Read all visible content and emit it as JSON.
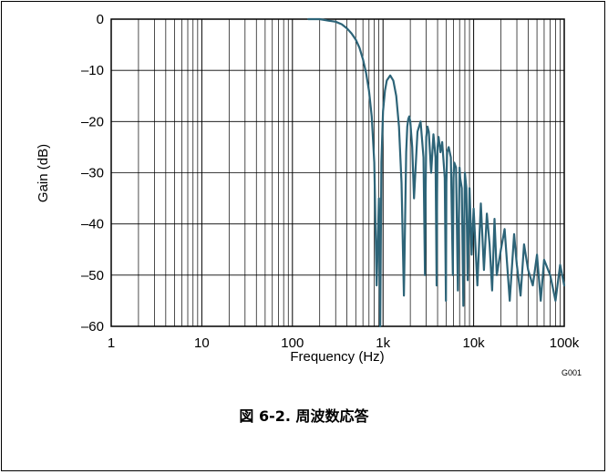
{
  "figure": {
    "code": "G001",
    "caption": "図 6-2. 周波数応答"
  },
  "chart_data": {
    "type": "line",
    "title": "",
    "xlabel": "Frequency (Hz)",
    "ylabel": "Gain (dB)",
    "xscale": "log",
    "xlim": [
      1,
      100000
    ],
    "ylim": [
      -60,
      0
    ],
    "xticks": [
      "1",
      "10",
      "100",
      "1k",
      "10k",
      "100k"
    ],
    "yticks": [
      "0",
      "–10",
      "–20",
      "–30",
      "–40",
      "–50",
      "–60"
    ],
    "grid": true,
    "line_color": "#2d6478",
    "series": [
      {
        "x": [
          150,
          200,
          250,
          300,
          350,
          400,
          450,
          500,
          550,
          600,
          650,
          700,
          750,
          800,
          850,
          900,
          930,
          960,
          1000,
          1050,
          1100,
          1200,
          1300,
          1400,
          1500,
          1600,
          1700,
          1800,
          1850,
          1900,
          1950,
          2000,
          2100,
          2200,
          2400,
          2600,
          2800,
          2900,
          2950,
          3000,
          3100,
          3200,
          3400,
          3600,
          3800,
          3900,
          3950,
          4000,
          4100,
          4300,
          4500,
          4800,
          4950,
          5000,
          5100,
          5300,
          5600,
          5900,
          6000,
          6100,
          6400,
          6700,
          7000,
          7100,
          7400,
          7700,
          8000,
          8300,
          8600,
          9000,
          9500,
          10000,
          11000,
          12000,
          13000,
          14000,
          15000,
          16000,
          17000,
          18000,
          20000,
          22000,
          25000,
          28000,
          30000,
          33000,
          36000,
          40000,
          45000,
          50000,
          55000,
          60000,
          70000,
          80000,
          90000,
          100000
        ],
        "y": [
          0,
          0,
          -0.3,
          -0.5,
          -1,
          -1.8,
          -2.8,
          -4,
          -5.6,
          -7.8,
          -10.5,
          -14,
          -19,
          -28,
          -52,
          -35,
          -60,
          -28,
          -18,
          -14,
          -12,
          -11,
          -12,
          -15,
          -21,
          -32,
          -54,
          -26,
          -21,
          -19.5,
          -19,
          -20,
          -25,
          -35,
          -22,
          -20,
          -27,
          -50,
          -34,
          -23,
          -21,
          -22,
          -30,
          -22.5,
          -27,
          -52,
          -34,
          -25,
          -23,
          -26,
          -24,
          -31,
          -55,
          -32,
          -26,
          -25,
          -27,
          -50,
          -31,
          -28,
          -29,
          -53,
          -29,
          -31,
          -33,
          -56,
          -30,
          -33,
          -51,
          -33,
          -46,
          -37,
          -52,
          -36,
          -49,
          -38,
          -44,
          -53,
          -39,
          -50,
          -45,
          -41,
          -55,
          -42,
          -48,
          -54,
          -44,
          -49,
          -52,
          -46,
          -55,
          -47,
          -50,
          -55,
          -48,
          -52
        ]
      }
    ]
  }
}
